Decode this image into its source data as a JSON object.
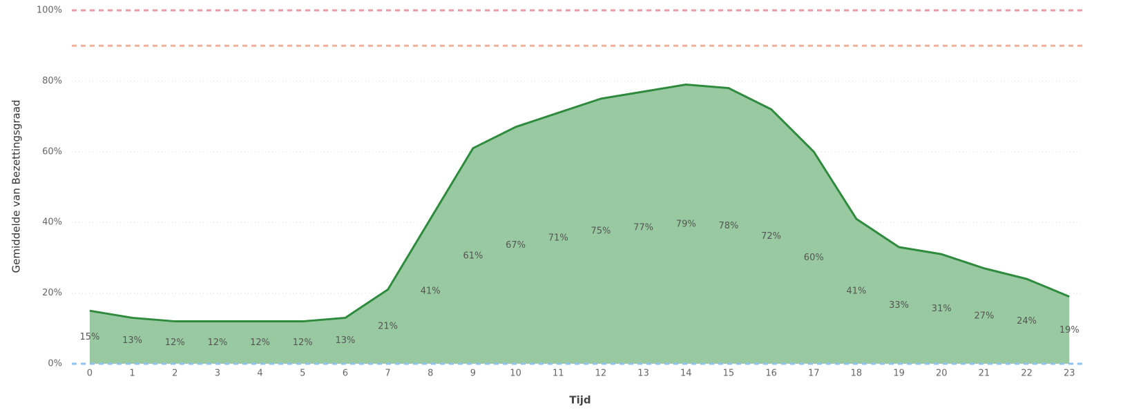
{
  "chart_data": {
    "type": "area",
    "x_label": "Tijd",
    "y_label": "Gemiddelde van Bezettingsgraad",
    "x": [
      0,
      1,
      2,
      3,
      4,
      5,
      6,
      7,
      8,
      9,
      10,
      11,
      12,
      13,
      14,
      15,
      16,
      17,
      18,
      19,
      20,
      21,
      22,
      23
    ],
    "xticks": [
      0,
      1,
      2,
      3,
      4,
      5,
      6,
      7,
      8,
      9,
      10,
      11,
      12,
      13,
      14,
      15,
      16,
      17,
      18,
      19,
      20,
      21,
      22,
      23
    ],
    "xlim": [
      -0.42,
      23.32
    ],
    "series": [
      {
        "color": "#2e8b3e",
        "fill": "#98c9a0",
        "values": [
          15,
          13,
          12,
          12,
          12,
          12,
          13,
          21,
          41,
          61,
          67,
          71,
          75,
          77,
          79,
          78,
          72,
          60,
          41,
          33,
          31,
          27,
          24,
          19
        ],
        "value_labels": [
          "15%",
          "13%",
          "12%",
          "12%",
          "12%",
          "12%",
          "13%",
          "21%",
          "41%",
          "61%",
          "67%",
          "71%",
          "75%",
          "77%",
          "79%",
          "78%",
          "72%",
          "60%",
          "41%",
          "33%",
          "31%",
          "27%",
          "24%",
          "19%"
        ]
      }
    ],
    "ylim": [
      0,
      100
    ],
    "yticks": [
      {
        "value": 0,
        "label": "0%"
      },
      {
        "value": 20,
        "label": "20%"
      },
      {
        "value": 40,
        "label": "40%"
      },
      {
        "value": 60,
        "label": "60%"
      },
      {
        "value": 80,
        "label": "80%"
      },
      {
        "value": 100,
        "label": "100%"
      }
    ],
    "grid": true,
    "reference_lines": [
      {
        "value": 100,
        "color": "#e89aa6"
      },
      {
        "value": 90,
        "color": "#f2b09a"
      },
      {
        "value": 0,
        "color": "#8fc3ef"
      }
    ]
  }
}
